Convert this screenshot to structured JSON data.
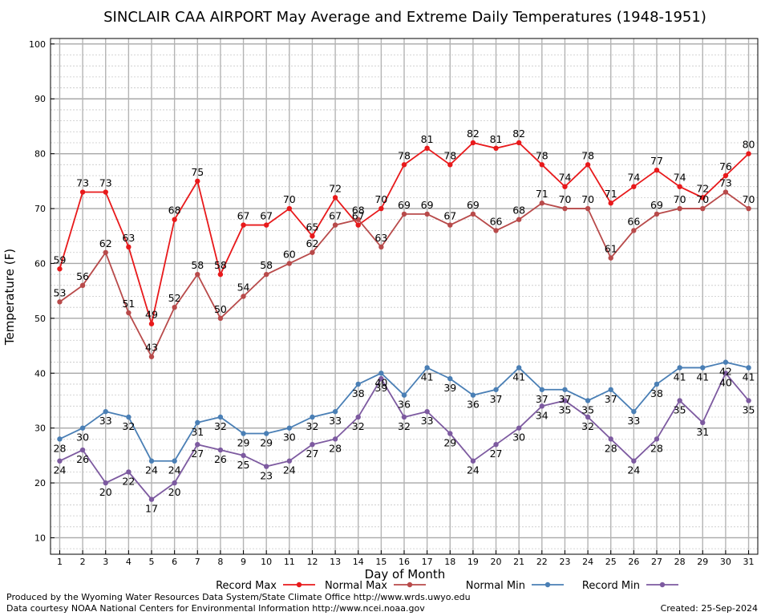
{
  "chart_data": {
    "type": "line",
    "title": "SINCLAIR CAA AIRPORT May Average and Extreme Daily Temperatures (1948-1951)",
    "xlabel": "Day of Month",
    "ylabel": "Temperature (F)",
    "x": [
      1,
      2,
      3,
      4,
      5,
      6,
      7,
      8,
      9,
      10,
      11,
      12,
      13,
      14,
      15,
      16,
      17,
      18,
      19,
      20,
      21,
      22,
      23,
      24,
      25,
      26,
      27,
      28,
      29,
      30,
      31
    ],
    "xlim": [
      0.6,
      31.4
    ],
    "ylim": [
      7,
      101
    ],
    "yticks": [
      10,
      20,
      30,
      40,
      50,
      60,
      70,
      80,
      90,
      100
    ],
    "grid": true,
    "legend_position": "bottom",
    "series": [
      {
        "name": "Record Max",
        "color": "#e8191b",
        "label_position": "above",
        "values": [
          59,
          73,
          73,
          63,
          49,
          68,
          75,
          58,
          67,
          67,
          70,
          65,
          72,
          67,
          70,
          78,
          81,
          78,
          82,
          81,
          82,
          78,
          74,
          78,
          71,
          74,
          77,
          74,
          72,
          76,
          80
        ]
      },
      {
        "name": "Normal Max",
        "color": "#b84a4a",
        "label_position": "above",
        "values": [
          53,
          56,
          62,
          51,
          43,
          52,
          58,
          50,
          54,
          58,
          60,
          62,
          67,
          68,
          63,
          69,
          69,
          67,
          69,
          66,
          68,
          71,
          70,
          70,
          61,
          66,
          69,
          70,
          70,
          73,
          70
        ]
      },
      {
        "name": "Normal Min",
        "color": "#4a7fb5",
        "label_position": "below",
        "values": [
          28,
          30,
          33,
          32,
          24,
          24,
          31,
          32,
          29,
          29,
          30,
          32,
          33,
          38,
          40,
          36,
          41,
          39,
          36,
          37,
          41,
          37,
          37,
          35,
          37,
          33,
          38,
          41,
          41,
          42,
          41
        ]
      },
      {
        "name": "Record Min",
        "color": "#7d5aa0",
        "label_position": "below",
        "values": [
          24,
          26,
          20,
          22,
          17,
          20,
          27,
          26,
          25,
          23,
          24,
          27,
          28,
          32,
          39,
          32,
          33,
          29,
          24,
          27,
          30,
          34,
          35,
          32,
          28,
          24,
          28,
          35,
          31,
          40,
          35
        ]
      }
    ]
  },
  "footer": {
    "produced_by": "Produced by the Wyoming Water Resources Data System/State Climate Office http://www.wrds.uwyo.edu",
    "courtesy": "Data courtesy NOAA National Centers for Environmental Information http://www.ncei.noaa.gov",
    "created": "Created:  25-Sep-2024"
  }
}
